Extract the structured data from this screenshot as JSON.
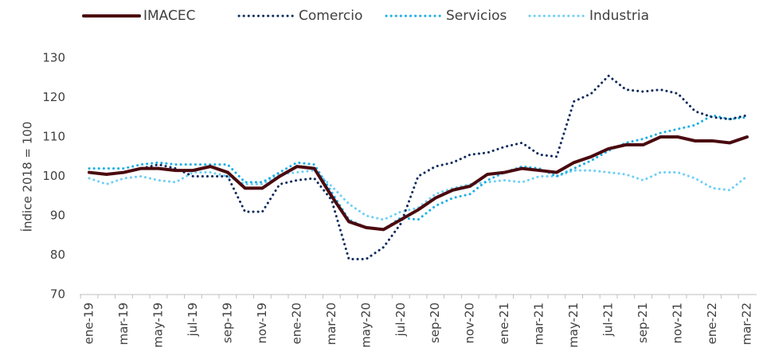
{
  "chart_data": {
    "type": "line",
    "ylabel": "Índice 2018 = 100",
    "categories": [
      "ene-19",
      null,
      "mar-19",
      null,
      "may-19",
      null,
      "jul-19",
      null,
      "sep-19",
      null,
      "nov-19",
      null,
      "ene-20",
      null,
      "mar-20",
      null,
      "may-20",
      null,
      "jul-20",
      null,
      "sep-20",
      null,
      "nov-20",
      null,
      "ene-21",
      null,
      "mar-21",
      null,
      "may-21",
      null,
      "jul-21",
      null,
      "sep-21",
      null,
      "nov-21",
      null,
      "ene-22",
      null,
      "mar-22"
    ],
    "series": [
      {
        "name": "IMACEC",
        "color": "#4a0a0f",
        "style": "solid",
        "values": [
          101,
          100.5,
          101,
          102,
          102,
          101.5,
          101.5,
          102.5,
          101,
          97,
          97,
          100,
          102.5,
          102,
          95,
          88.5,
          87,
          86.5,
          89,
          91.5,
          94.5,
          96.5,
          97.5,
          100.5,
          101,
          102,
          101.5,
          101,
          103.5,
          105,
          107,
          108,
          108,
          110,
          110,
          109,
          109,
          108.5,
          110
        ]
      },
      {
        "name": "Comercio",
        "color": "#0d2a5c",
        "style": "dotted",
        "values": [
          101,
          100.5,
          101,
          102,
          103,
          102,
          100,
          100,
          100,
          91,
          91,
          98,
          99,
          99.5,
          94,
          79,
          79,
          82,
          88,
          100,
          102.5,
          103.5,
          105.5,
          106,
          107.5,
          108.5,
          105.5,
          105,
          119,
          121,
          125.5,
          122,
          121.5,
          122,
          121,
          116.5,
          115,
          114.5,
          115.5
        ]
      },
      {
        "name": "Servicios",
        "color": "#1aaee6",
        "style": "dotted",
        "values": [
          102,
          102,
          102,
          103,
          103.5,
          103,
          103,
          103,
          103,
          98.5,
          98.5,
          101,
          103.5,
          103,
          96,
          89,
          87,
          86.5,
          89.5,
          89,
          92.5,
          94.5,
          95.5,
          99,
          101,
          102.5,
          102,
          100,
          102,
          104,
          106.5,
          108.5,
          109.5,
          111,
          112,
          113,
          115.5,
          114.5,
          115
        ]
      },
      {
        "name": "Industria",
        "color": "#6dcff6",
        "style": "dotted",
        "values": [
          99.5,
          98,
          99.5,
          100,
          99,
          98.5,
          101,
          101,
          100,
          98,
          98,
          100.5,
          101,
          101.5,
          97.5,
          93,
          90,
          89,
          91,
          92,
          95.5,
          97,
          98,
          98.5,
          99,
          98.5,
          100,
          100,
          101.5,
          101.5,
          101,
          100.5,
          99,
          101,
          101,
          99.5,
          97,
          96.5,
          100
        ]
      }
    ],
    "ylim": [
      70,
      130
    ],
    "yticks": [
      70,
      80,
      90,
      100,
      110,
      120,
      130
    ],
    "grid": false,
    "legend": "top"
  }
}
